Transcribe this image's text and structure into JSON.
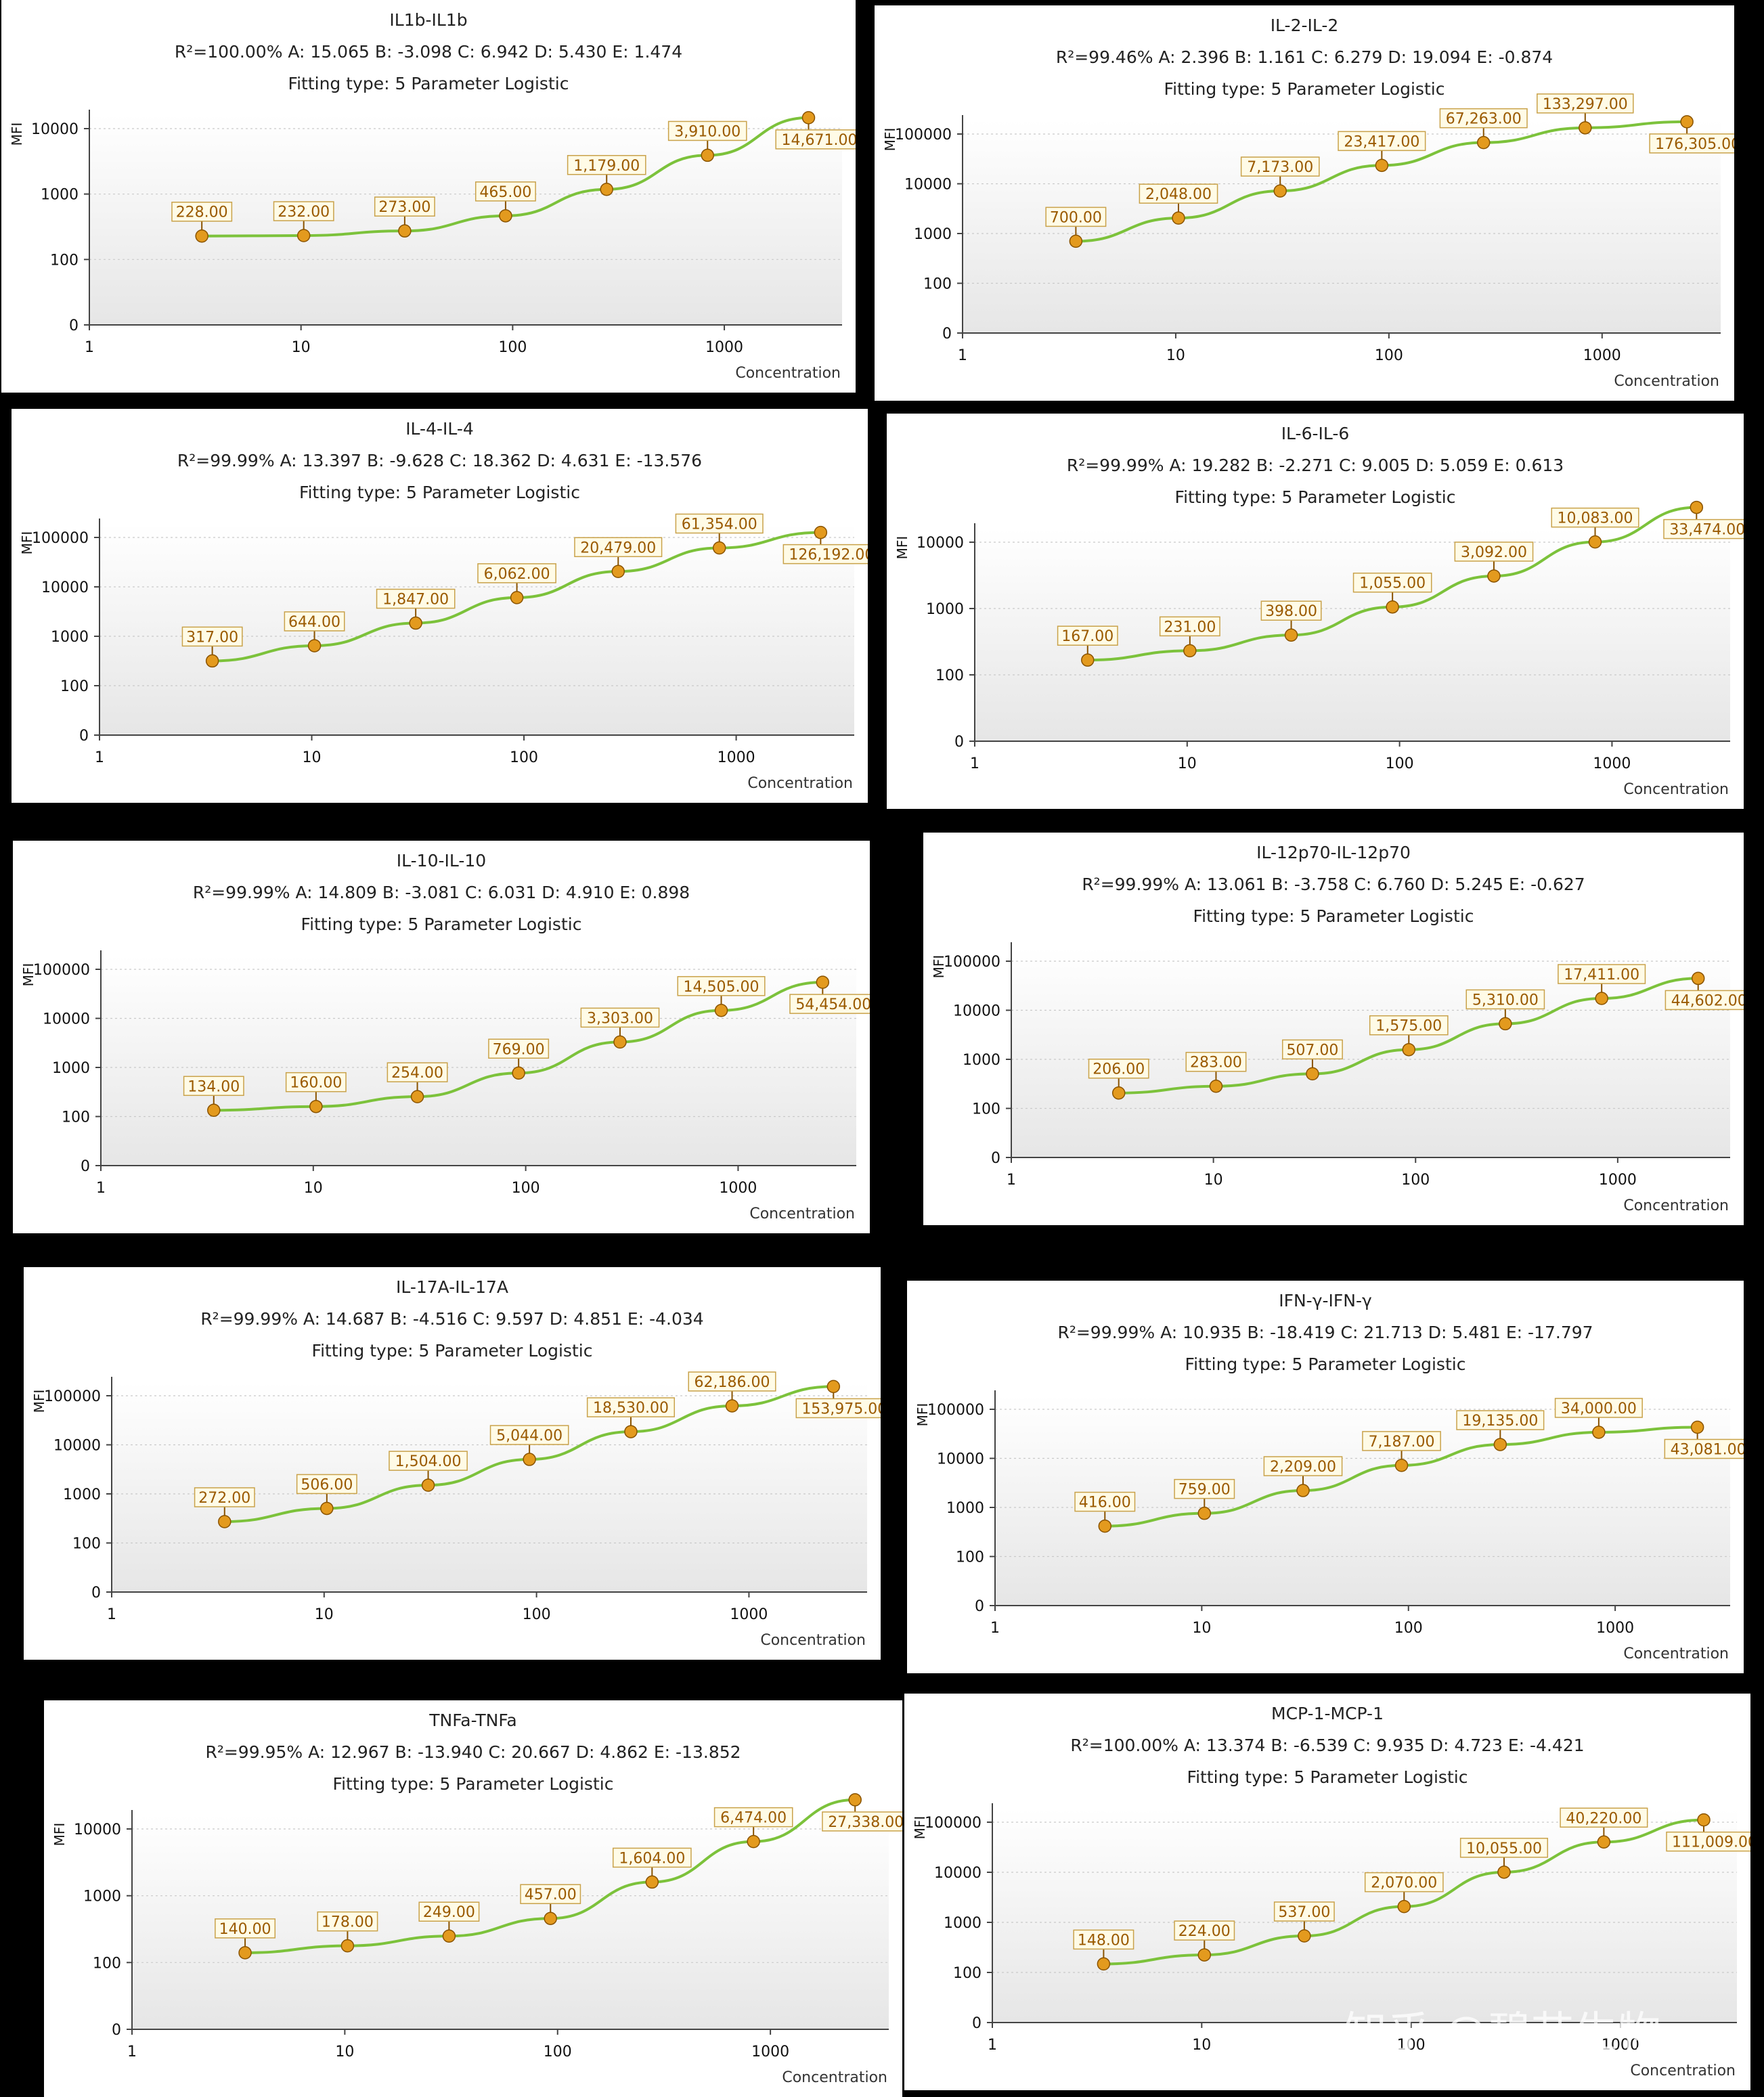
{
  "chart_data": [
    {
      "type": "line",
      "title": "IL1b-IL1b",
      "params": "R²=100.00% A: 15.065 B: -3.098 C: 6.942 D: 5.430 E: 1.474",
      "fitting": "Fitting type: 5 Parameter Logistic",
      "ylabel": "MFI",
      "xlabel": "Concentration",
      "yticks": [
        "0",
        "100",
        "1000",
        "10000"
      ],
      "xticks": [
        "1",
        "10",
        "100",
        "1000"
      ],
      "x": [
        3.4,
        10.3,
        30.9,
        92.6,
        278,
        833,
        2500
      ],
      "values": [
        228,
        232,
        273,
        465,
        1179,
        3910,
        14671
      ],
      "labels": [
        "228.00",
        "232.00",
        "273.00",
        "465.00",
        "1,179.00",
        "3,910.00",
        "14,671.00"
      ]
    },
    {
      "type": "line",
      "title": "IL-2-IL-2",
      "params": "R²=99.46% A: 2.396 B: 1.161 C: 6.279 D: 19.094 E: -0.874",
      "fitting": "Fitting type: 5 Parameter Logistic",
      "ylabel": "MFI",
      "xlabel": "Concentration",
      "yticks": [
        "0",
        "100",
        "1000",
        "10000",
        "100000"
      ],
      "xticks": [
        "1",
        "10",
        "100",
        "1000"
      ],
      "x": [
        3.4,
        10.3,
        30.9,
        92.6,
        278,
        833,
        2500
      ],
      "values": [
        700,
        2048,
        7173,
        23417,
        67263,
        133297,
        176305
      ],
      "labels": [
        "700.00",
        "2,048.00",
        "7,173.00",
        "23,417.00",
        "67,263.00",
        "133,297.00",
        "176,305.00"
      ]
    },
    {
      "type": "line",
      "title": "IL-4-IL-4",
      "params": "R²=99.99% A: 13.397 B: -9.628 C: 18.362 D: 4.631 E: -13.576",
      "fitting": "Fitting type: 5 Parameter Logistic",
      "ylabel": "MFI",
      "xlabel": "Concentration",
      "yticks": [
        "0",
        "100",
        "1000",
        "10000",
        "100000"
      ],
      "xticks": [
        "1",
        "10",
        "100",
        "1000"
      ],
      "x": [
        3.4,
        10.3,
        30.9,
        92.6,
        278,
        833,
        2500
      ],
      "values": [
        317,
        644,
        1847,
        6062,
        20479,
        61354,
        126192
      ],
      "labels": [
        "317.00",
        "644.00",
        "1,847.00",
        "6,062.00",
        "20,479.00",
        "61,354.00",
        "126,192.00"
      ]
    },
    {
      "type": "line",
      "title": "IL-6-IL-6",
      "params": "R²=99.99% A: 19.282 B: -2.271 C: 9.005 D: 5.059 E: 0.613",
      "fitting": "Fitting type: 5 Parameter Logistic",
      "ylabel": "MFI",
      "xlabel": "Concentration",
      "yticks": [
        "0",
        "100",
        "1000",
        "10000"
      ],
      "xticks": [
        "1",
        "10",
        "100",
        "1000"
      ],
      "x": [
        3.4,
        10.3,
        30.9,
        92.6,
        278,
        833,
        2500
      ],
      "values": [
        167,
        231,
        398,
        1055,
        3092,
        10083,
        33474
      ],
      "labels": [
        "167.00",
        "231.00",
        "398.00",
        "1,055.00",
        "3,092.00",
        "10,083.00",
        "33,474.00"
      ]
    },
    {
      "type": "line",
      "title": "IL-10-IL-10",
      "params": "R²=99.99% A: 14.809 B: -3.081 C: 6.031 D: 4.910 E: 0.898",
      "fitting": "Fitting type: 5 Parameter Logistic",
      "ylabel": "MFI",
      "xlabel": "Concentration",
      "yticks": [
        "0",
        "100",
        "1000",
        "10000",
        "100000"
      ],
      "xticks": [
        "1",
        "10",
        "100",
        "1000"
      ],
      "x": [
        3.4,
        10.3,
        30.9,
        92.6,
        278,
        833,
        2500
      ],
      "values": [
        134,
        160,
        254,
        769,
        3303,
        14505,
        54454
      ],
      "labels": [
        "134.00",
        "160.00",
        "254.00",
        "769.00",
        "3,303.00",
        "14,505.00",
        "54,454.00"
      ]
    },
    {
      "type": "line",
      "title": "IL-12p70-IL-12p70",
      "params": "R²=99.99% A: 13.061 B: -3.758 C: 6.760 D: 5.245 E: -0.627",
      "fitting": "Fitting type: 5 Parameter Logistic",
      "ylabel": "MFI",
      "xlabel": "Concentration",
      "yticks": [
        "0",
        "100",
        "1000",
        "10000",
        "100000"
      ],
      "xticks": [
        "1",
        "10",
        "100",
        "1000"
      ],
      "x": [
        3.4,
        10.3,
        30.9,
        92.6,
        278,
        833,
        2500
      ],
      "values": [
        206,
        283,
        507,
        1575,
        5310,
        17411,
        44602
      ],
      "labels": [
        "206.00",
        "283.00",
        "507.00",
        "1,575.00",
        "5,310.00",
        "17,411.00",
        "44,602.00"
      ]
    },
    {
      "type": "line",
      "title": "IL-17A-IL-17A",
      "params": "R²=99.99% A: 14.687 B: -4.516 C: 9.597 D: 4.851 E: -4.034",
      "fitting": "Fitting type: 5 Parameter Logistic",
      "ylabel": "MFI",
      "xlabel": "Concentration",
      "yticks": [
        "0",
        "100",
        "1000",
        "10000",
        "100000"
      ],
      "xticks": [
        "1",
        "10",
        "100",
        "1000"
      ],
      "x": [
        3.4,
        10.3,
        30.9,
        92.6,
        278,
        833,
        2500
      ],
      "values": [
        272,
        506,
        1504,
        5044,
        18530,
        62186,
        153975
      ],
      "labels": [
        "272.00",
        "506.00",
        "1,504.00",
        "5,044.00",
        "18,530.00",
        "62,186.00",
        "153,975.00"
      ]
    },
    {
      "type": "line",
      "title": "IFN-γ-IFN-γ",
      "params": "R²=99.99% A: 10.935 B: -18.419 C: 21.713 D: 5.481 E: -17.797",
      "fitting": "Fitting type: 5 Parameter Logistic",
      "ylabel": "MFI",
      "xlabel": "Concentration",
      "yticks": [
        "0",
        "100",
        "1000",
        "10000",
        "100000"
      ],
      "xticks": [
        "1",
        "10",
        "100",
        "1000"
      ],
      "x": [
        3.4,
        10.3,
        30.9,
        92.6,
        278,
        833,
        2500
      ],
      "values": [
        416,
        759,
        2209,
        7187,
        19135,
        34000,
        43081
      ],
      "labels": [
        "416.00",
        "759.00",
        "2,209.00",
        "7,187.00",
        "19,135.00",
        "34,000.00",
        "43,081.00"
      ]
    },
    {
      "type": "line",
      "title": "TNFa-TNFa",
      "params": "R²=99.95% A: 12.967 B: -13.940 C: 20.667 D: 4.862 E: -13.852",
      "fitting": "Fitting type: 5 Parameter Logistic",
      "ylabel": "MFI",
      "xlabel": "Concentration",
      "yticks": [
        "0",
        "100",
        "1000",
        "10000"
      ],
      "xticks": [
        "1",
        "10",
        "100",
        "1000"
      ],
      "x": [
        3.4,
        10.3,
        30.9,
        92.6,
        278,
        833,
        2500
      ],
      "values": [
        140,
        178,
        249,
        457,
        1604,
        6474,
        27338
      ],
      "labels": [
        "140.00",
        "178.00",
        "249.00",
        "457.00",
        "1,604.00",
        "6,474.00",
        "27,338.00"
      ]
    },
    {
      "type": "line",
      "title": "MCP-1-MCP-1",
      "params": "R²=100.00% A: 13.374 B: -6.539 C: 9.935 D: 4.723 E: -4.421",
      "fitting": "Fitting type: 5 Parameter Logistic",
      "ylabel": "MFI",
      "xlabel": "Concentration",
      "yticks": [
        "0",
        "100",
        "1000",
        "10000",
        "100000"
      ],
      "xticks": [
        "1",
        "10",
        "100",
        "1000"
      ],
      "x": [
        3.4,
        10.3,
        30.9,
        92.6,
        278,
        833,
        2500
      ],
      "values": [
        148,
        224,
        537,
        2070,
        10055,
        40220,
        111009
      ],
      "labels": [
        "148.00",
        "224.00",
        "537.00",
        "2,070.00",
        "10,055.00",
        "40,220.00",
        "111,009.00"
      ]
    }
  ],
  "watermark": "知乎 @碧芯生物"
}
